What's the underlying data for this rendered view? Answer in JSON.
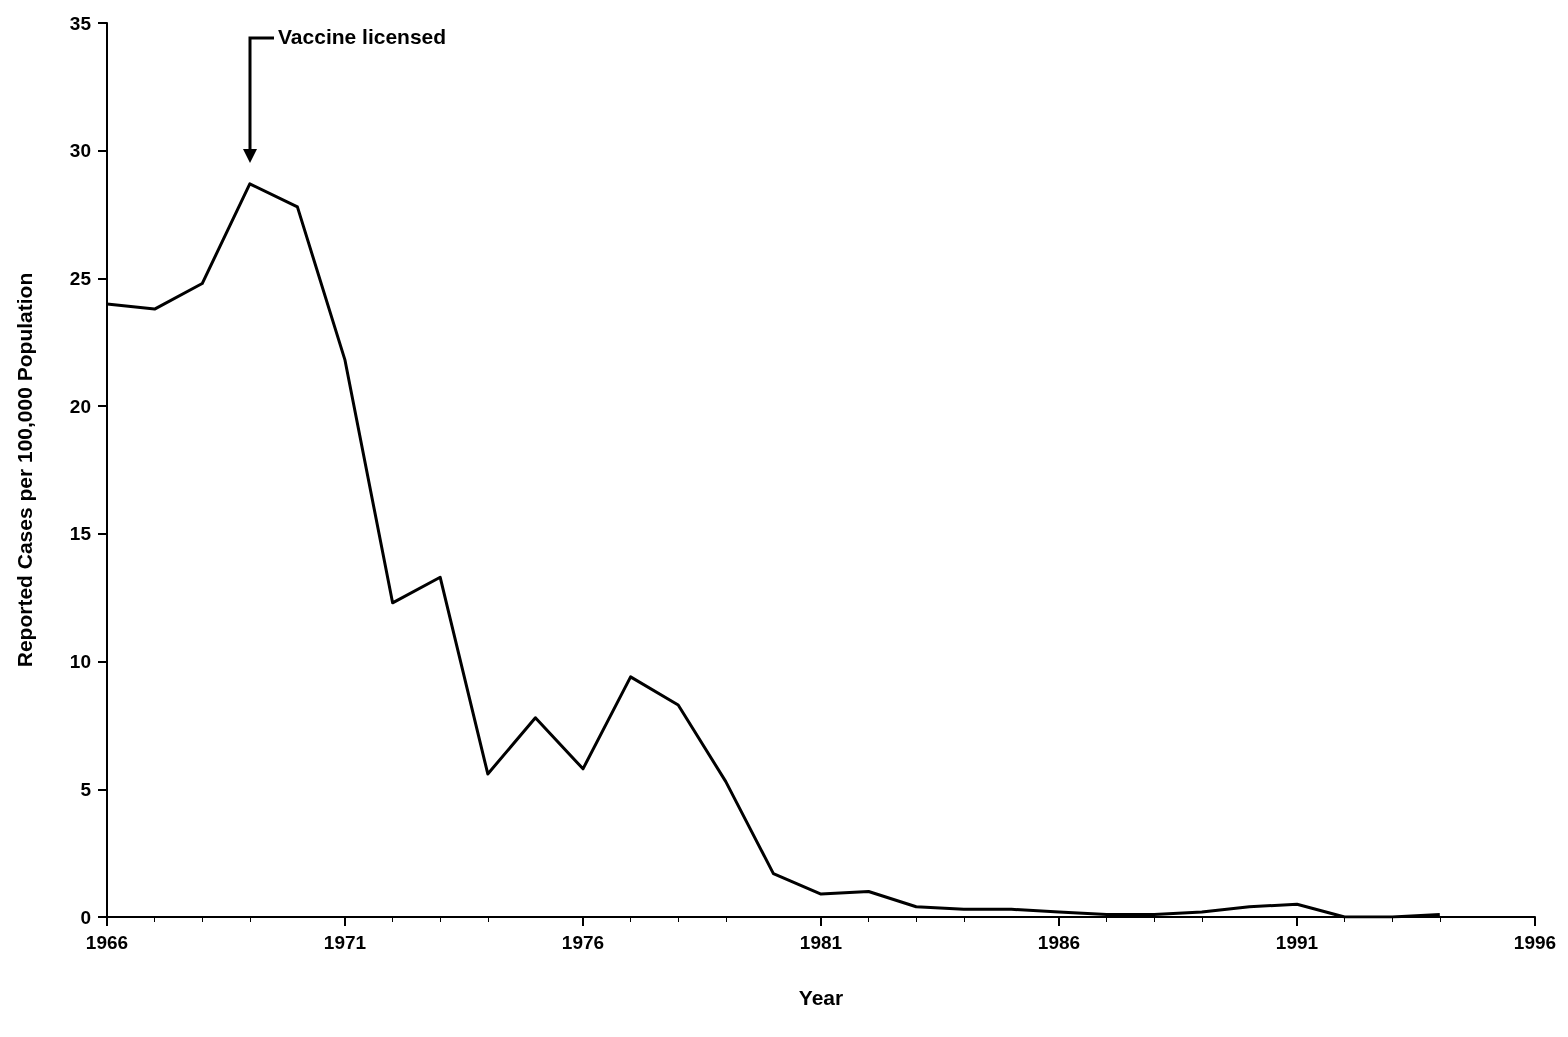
{
  "chart_data": {
    "type": "line",
    "xlabel": "Year",
    "ylabel": "Reported Cases per 100,000 Population",
    "x": [
      1966,
      1967,
      1968,
      1969,
      1970,
      1971,
      1972,
      1973,
      1974,
      1975,
      1976,
      1977,
      1978,
      1979,
      1980,
      1981,
      1982,
      1983,
      1984,
      1985,
      1986,
      1987,
      1988,
      1989,
      1990,
      1991,
      1992,
      1993,
      1994
    ],
    "series": [
      {
        "color": "#000000",
        "values": [
          24.0,
          23.8,
          24.8,
          28.7,
          27.8,
          21.8,
          12.3,
          13.3,
          5.6,
          7.8,
          5.8,
          9.4,
          8.3,
          5.3,
          1.7,
          0.9,
          1.0,
          0.4,
          0.3,
          0.3,
          0.2,
          0.1,
          0.1,
          0.2,
          0.4,
          0.5,
          0.0,
          0.0,
          0.1
        ]
      }
    ],
    "xlim": [
      1966,
      1996
    ],
    "xticks": [
      1966,
      1971,
      1976,
      1981,
      1986,
      1991,
      1996
    ],
    "ylim": [
      0,
      35
    ],
    "yticks": [
      0,
      5,
      10,
      15,
      20,
      25,
      30,
      35
    ],
    "grid": false,
    "marker": "none",
    "line_style": "solid",
    "annotations": [
      "Vaccine licensed"
    ]
  }
}
